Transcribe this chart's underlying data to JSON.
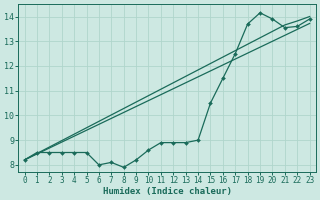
{
  "xlabel": "Humidex (Indice chaleur)",
  "bg_color": "#cde8e2",
  "grid_color": "#b0d5cc",
  "line_color": "#1a6b5a",
  "xlim": [
    -0.5,
    23.5
  ],
  "ylim": [
    7.7,
    14.5
  ],
  "xticks": [
    0,
    1,
    2,
    3,
    4,
    5,
    6,
    7,
    8,
    9,
    10,
    11,
    12,
    13,
    14,
    15,
    16,
    17,
    18,
    19,
    20,
    21,
    22,
    23
  ],
  "yticks": [
    8,
    9,
    10,
    11,
    12,
    13,
    14
  ],
  "line1_x": [
    0,
    1,
    2,
    3,
    4,
    5,
    6,
    7,
    8,
    9,
    10,
    11,
    12,
    13,
    14,
    15,
    16,
    17,
    18,
    19,
    20,
    21,
    22,
    23
  ],
  "line1_y": [
    8.2,
    8.5,
    8.5,
    8.5,
    8.5,
    8.5,
    8.0,
    8.1,
    7.9,
    8.2,
    8.6,
    8.9,
    8.9,
    8.9,
    9.0,
    10.5,
    11.5,
    12.5,
    13.7,
    14.15,
    13.9,
    13.55,
    13.6,
    13.9
  ],
  "line2_x": [
    0,
    1,
    2,
    3,
    4,
    5,
    6,
    7,
    8,
    9,
    10,
    11,
    12,
    13,
    14,
    15,
    16,
    17,
    18,
    19,
    20,
    21,
    22,
    23
  ],
  "line2_y": [
    8.2,
    8.46,
    8.72,
    8.98,
    9.24,
    9.5,
    9.76,
    10.02,
    10.28,
    10.54,
    10.8,
    11.06,
    11.32,
    11.58,
    11.84,
    12.1,
    12.36,
    12.62,
    12.88,
    13.14,
    13.4,
    13.66,
    13.82,
    14.0
  ],
  "line3_x": [
    0,
    1,
    2,
    3,
    4,
    5,
    6,
    7,
    8,
    9,
    10,
    11,
    12,
    13,
    14,
    15,
    16,
    17,
    18,
    19,
    20,
    21,
    22,
    23
  ],
  "line3_y": [
    8.2,
    8.44,
    8.68,
    8.92,
    9.16,
    9.4,
    9.64,
    9.88,
    10.12,
    10.36,
    10.6,
    10.84,
    11.08,
    11.32,
    11.56,
    11.8,
    12.04,
    12.28,
    12.52,
    12.76,
    13.0,
    13.24,
    13.48,
    13.72
  ]
}
